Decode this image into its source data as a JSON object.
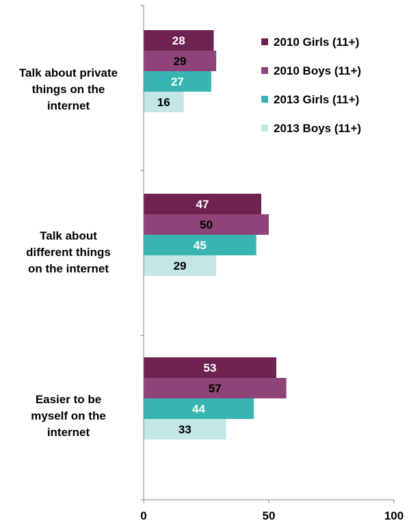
{
  "chart_data": {
    "type": "bar",
    "orientation": "horizontal",
    "categories": [
      [
        "Talk about private",
        "things on the",
        "internet"
      ],
      [
        "Talk about",
        "different things",
        "on the internet"
      ],
      [
        "Easier to be",
        "myself on the",
        "internet"
      ]
    ],
    "series": [
      {
        "name": "2010 Girls (11+)",
        "values": [
          28,
          47,
          53
        ],
        "color": "#6e2250",
        "label_color": "#ffffff"
      },
      {
        "name": "2010 Boys (11+)",
        "values": [
          29,
          50,
          57
        ],
        "color": "#8e4478",
        "label_color": "#000000"
      },
      {
        "name": "2013 Girls (11+)",
        "values": [
          27,
          45,
          44
        ],
        "color": "#38b5b0",
        "label_color": "#ffffff"
      },
      {
        "name": "2013 Boys (11+)",
        "values": [
          16,
          29,
          33
        ],
        "color": "#c3e7e6",
        "label_color": "#000000"
      }
    ],
    "xlim": [
      0,
      100
    ],
    "xticks": [
      0,
      50,
      100
    ],
    "xtick_labels": [
      "0",
      "50",
      "100"
    ],
    "grid": false,
    "legend_position": "top-right",
    "title": "",
    "xlabel": "",
    "ylabel": ""
  }
}
